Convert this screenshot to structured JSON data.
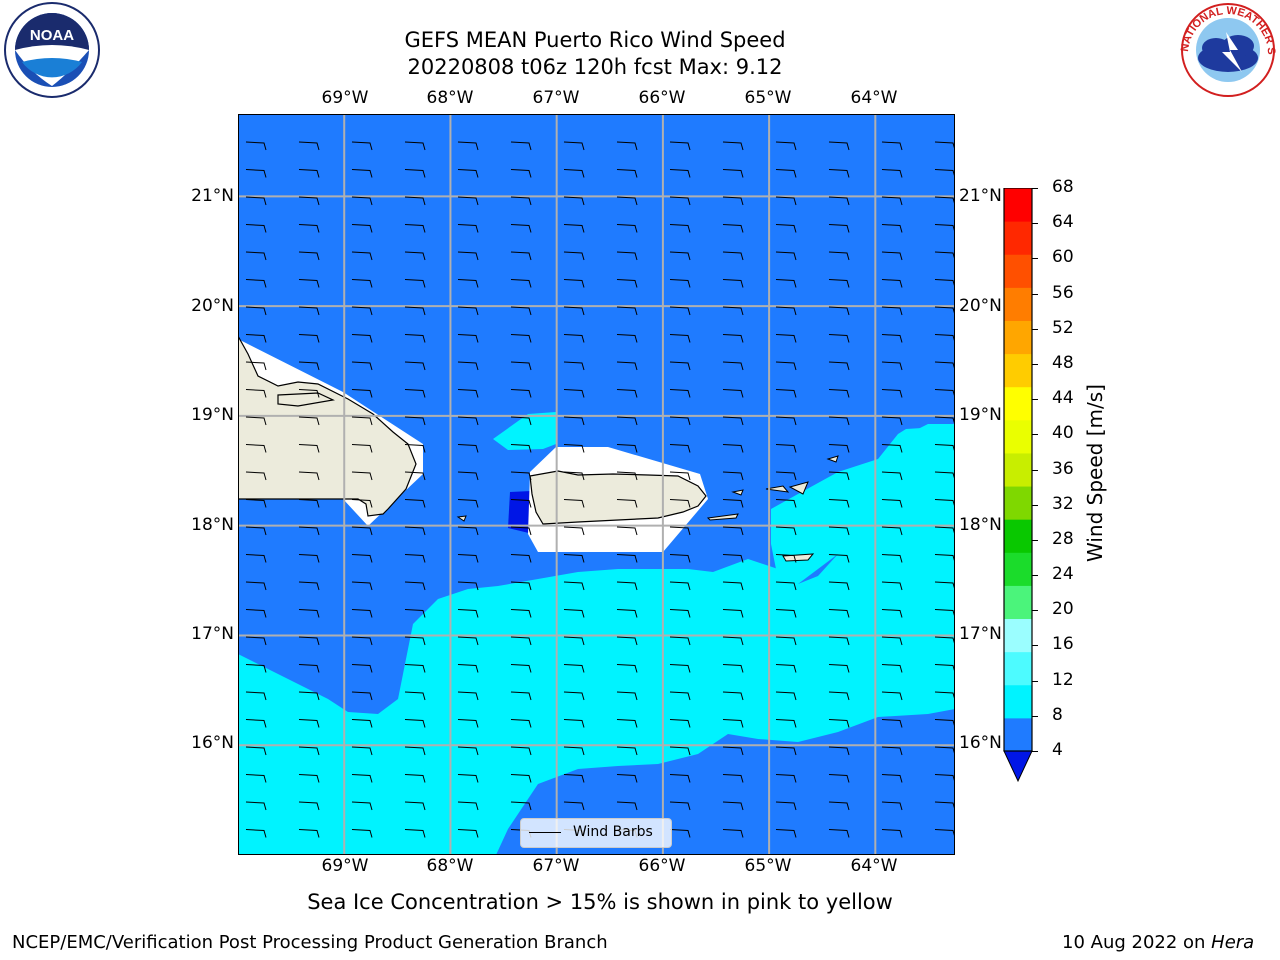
{
  "header": {
    "title_line1": "GEFS MEAN Puerto Rico Wind Speed",
    "title_line2": "20220808 t06z 120h fcst   Max: 9.12"
  },
  "logos": {
    "left": "NOAA",
    "right": "NATIONAL WEATHER SERVICE"
  },
  "map": {
    "lon_labels": [
      "69°W",
      "68°W",
      "67°W",
      "66°W",
      "65°W",
      "64°W"
    ],
    "lat_labels": [
      "21°N",
      "20°N",
      "19°N",
      "18°N",
      "17°N",
      "16°N"
    ],
    "lon_range": [
      -70.0,
      -63.25
    ],
    "lat_range": [
      15.0,
      21.75
    ],
    "ocean_color": "#1f7bff",
    "light_band_color": "#00f3ff",
    "dark_patch_color": "#0016e6",
    "land_color": "#ecebdc",
    "grid": true
  },
  "legend": {
    "label": "Wind Barbs"
  },
  "colorbar": {
    "title": "Wind Speed [m/s]",
    "ticks": [
      "68",
      "64",
      "60",
      "56",
      "52",
      "48",
      "44",
      "40",
      "36",
      "32",
      "28",
      "24",
      "20",
      "16",
      "12",
      "8",
      "4"
    ],
    "colors_bottom_to_top": [
      "#1f7bff",
      "#00f3ff",
      "#4dfbff",
      "#9bfeff",
      "#4bf47b",
      "#1bdc2b",
      "#09c800",
      "#7fd800",
      "#c8ee00",
      "#eaff00",
      "#ffff00",
      "#ffcc00",
      "#ffa600",
      "#ff7d00",
      "#ff5000",
      "#ff2800",
      "#ff0000"
    ],
    "extend_color": "#0016e6"
  },
  "caption": "Sea Ice Concentration > 15% is shown in pink to yellow",
  "footer": {
    "left": "NCEP/EMC/Verification Post Processing Product Generation Branch",
    "right_date": "10 Aug 2022 on ",
    "right_host": "Hera"
  }
}
